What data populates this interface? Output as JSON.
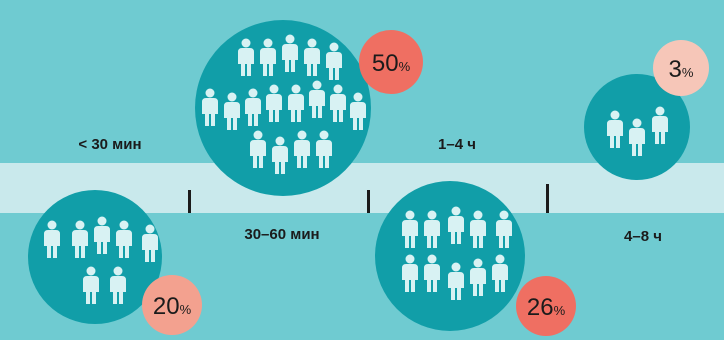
{
  "colors": {
    "background": "#6fcbd1",
    "band": "#c9e9ec",
    "circle": "#119ea8",
    "person": "#d8f2f3",
    "badge_strong": "#ef6f62",
    "badge_medium": "#f3a18f",
    "badge_light": "#f6c6b8",
    "text": "#1b1b1b",
    "tick": "#1b1b1b"
  },
  "figure": {
    "icon_name": "person-icon",
    "intervals": [
      {
        "label": "< 30 мин",
        "value": "20",
        "unit": "%",
        "people": 7,
        "badge": "badge_medium"
      },
      {
        "label": "30–60 мин",
        "value": "50",
        "unit": "%",
        "people": 17,
        "badge": "badge_strong"
      },
      {
        "label": "1–4 ч",
        "value": "26",
        "unit": "%",
        "people": 10,
        "badge": "badge_strong"
      },
      {
        "label": "4–8 ч",
        "value": "3",
        "unit": "%",
        "people": 3,
        "badge": "badge_light"
      }
    ]
  }
}
